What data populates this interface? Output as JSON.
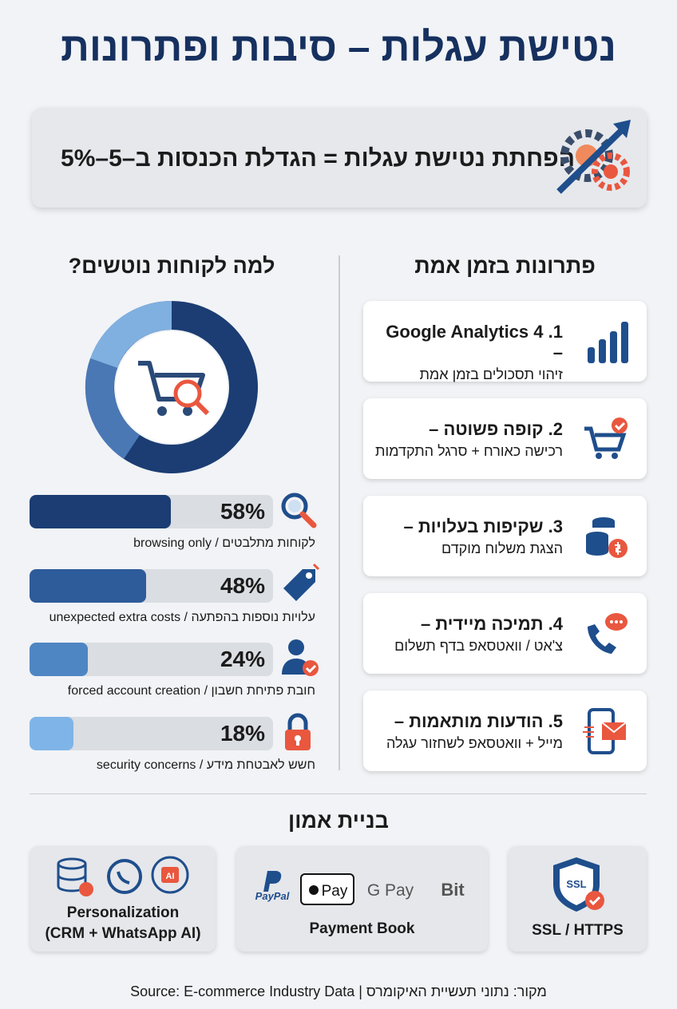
{
  "header": {
    "title": "נטישת עגלות – סיבות ופתרונות",
    "banner": "הפחתת נטישת עגלות = הגדלת הכנסות ב–5–5%"
  },
  "solutions": {
    "title": "פתרונות בזמן אמת",
    "items": [
      {
        "title": "1. Google Analytics 4 –",
        "text": "זיהוי תסכולים בזמן אמת"
      },
      {
        "title": "2. קופה פשוטה –",
        "text": "רכישה כאורח + סרגל התקדמות"
      },
      {
        "title": "3. שקיפות בעלויות –",
        "text": "הצגת משלוח מוקדם"
      },
      {
        "title": "4. תמיכה מיידית –",
        "text": "צ'אט / וואטסאפ בדף תשלום"
      },
      {
        "title": "5. הודעות מותאמות –",
        "text": "מייל + וואטסאפ לשחזור עגלה"
      }
    ]
  },
  "reasons": {
    "title": "למה לקוחות נוטשים?",
    "items": [
      {
        "value": 58,
        "label": "58%",
        "text": "לקוחות מתלבטים / browsing only"
      },
      {
        "value": 48,
        "label": "48%",
        "text": "עלויות נוספות בהפתעה / unexpected extra costs"
      },
      {
        "value": 24,
        "label": "24%",
        "text": "חובת פתיחת חשבון / forced account creation"
      },
      {
        "value": 18,
        "label": "18%",
        "text": "חשש לאבטחת מידע / security concerns"
      }
    ]
  },
  "trust": {
    "title": "בניית אמון",
    "ssl": {
      "icon": "SSL",
      "label": "SSL / HTTPS"
    },
    "payment": {
      "logos": [
        "PayPal",
        "Pay",
        "G Pay",
        "Bit"
      ],
      "label": "Payment Book"
    },
    "personalization": {
      "icon": "AI",
      "label": "Personalization",
      "sublabel": "(CRM + WhatsApp AI)"
    }
  },
  "footer": {
    "source": "מקור: נתוני תעשיית האיקומרס | Source: E-commerce Industry Data"
  }
}
